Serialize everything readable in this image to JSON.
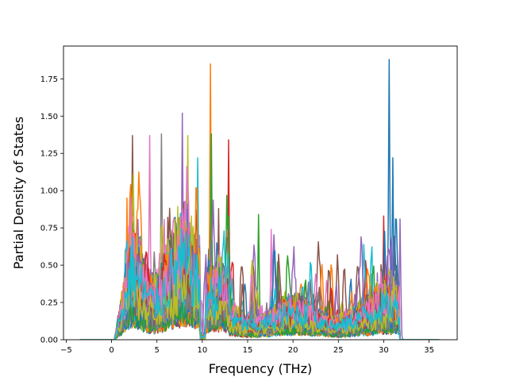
{
  "chart_data": {
    "type": "line",
    "title": "",
    "xlabel": "Frequency (THz)",
    "ylabel": "Partial Density of States",
    "xlim": [
      -5.3,
      38.1
    ],
    "ylim": [
      0.0,
      1.97
    ],
    "xticks": [
      -5,
      0,
      5,
      10,
      15,
      20,
      25,
      30,
      35
    ],
    "xtick_labels": [
      "−5",
      "0",
      "5",
      "10",
      "15",
      "20",
      "25",
      "30",
      "35"
    ],
    "yticks": [
      0.0,
      0.25,
      0.5,
      0.75,
      1.0,
      1.25,
      1.5,
      1.75
    ],
    "ytick_labels": [
      "0.00",
      "0.25",
      "0.50",
      "0.75",
      "1.00",
      "1.25",
      "1.50",
      "1.75"
    ],
    "grid": false,
    "legend": "none",
    "x_range_of_data": [
      -3.5,
      36.2
    ],
    "palette": [
      "#1f77b4",
      "#ff7f0e",
      "#2ca02c",
      "#d62728",
      "#9467bd",
      "#8c564b",
      "#e377c2",
      "#7f7f7f",
      "#bcbd22",
      "#17becf"
    ],
    "series_count": 50,
    "notable_peaks": [
      {
        "x": 30.6,
        "y": 1.88,
        "color": "#1f77b4"
      },
      {
        "x": 10.9,
        "y": 1.85,
        "color": "#8c564b"
      },
      {
        "x": 11.0,
        "y": 1.38,
        "color": "#bcbd22"
      },
      {
        "x": 12.9,
        "y": 1.34,
        "color": "#7f7f7f"
      },
      {
        "x": 7.8,
        "y": 1.52,
        "color": "#2ca02c"
      },
      {
        "x": 2.3,
        "y": 1.37,
        "color": "#9467bd"
      },
      {
        "x": 4.2,
        "y": 1.37,
        "color": "#ff7f0e"
      },
      {
        "x": 5.5,
        "y": 1.38,
        "color": "#bcbd22"
      },
      {
        "x": 8.4,
        "y": 1.37,
        "color": "#e377c2"
      },
      {
        "x": 9.5,
        "y": 1.22,
        "color": "#1f77b4"
      },
      {
        "x": 31.0,
        "y": 1.22,
        "color": "#e377c2"
      },
      {
        "x": 1.7,
        "y": 0.95,
        "color": "#17becf"
      },
      {
        "x": 16.2,
        "y": 0.84,
        "color": "#9467bd"
      },
      {
        "x": 30.0,
        "y": 0.83,
        "color": "#ff7f0e"
      },
      {
        "x": 31.8,
        "y": 0.81,
        "color": "#ff7f0e"
      },
      {
        "x": 11.8,
        "y": 0.88,
        "color": "#9467bd"
      },
      {
        "x": 17.6,
        "y": 0.74,
        "color": "#d62728"
      }
    ]
  }
}
